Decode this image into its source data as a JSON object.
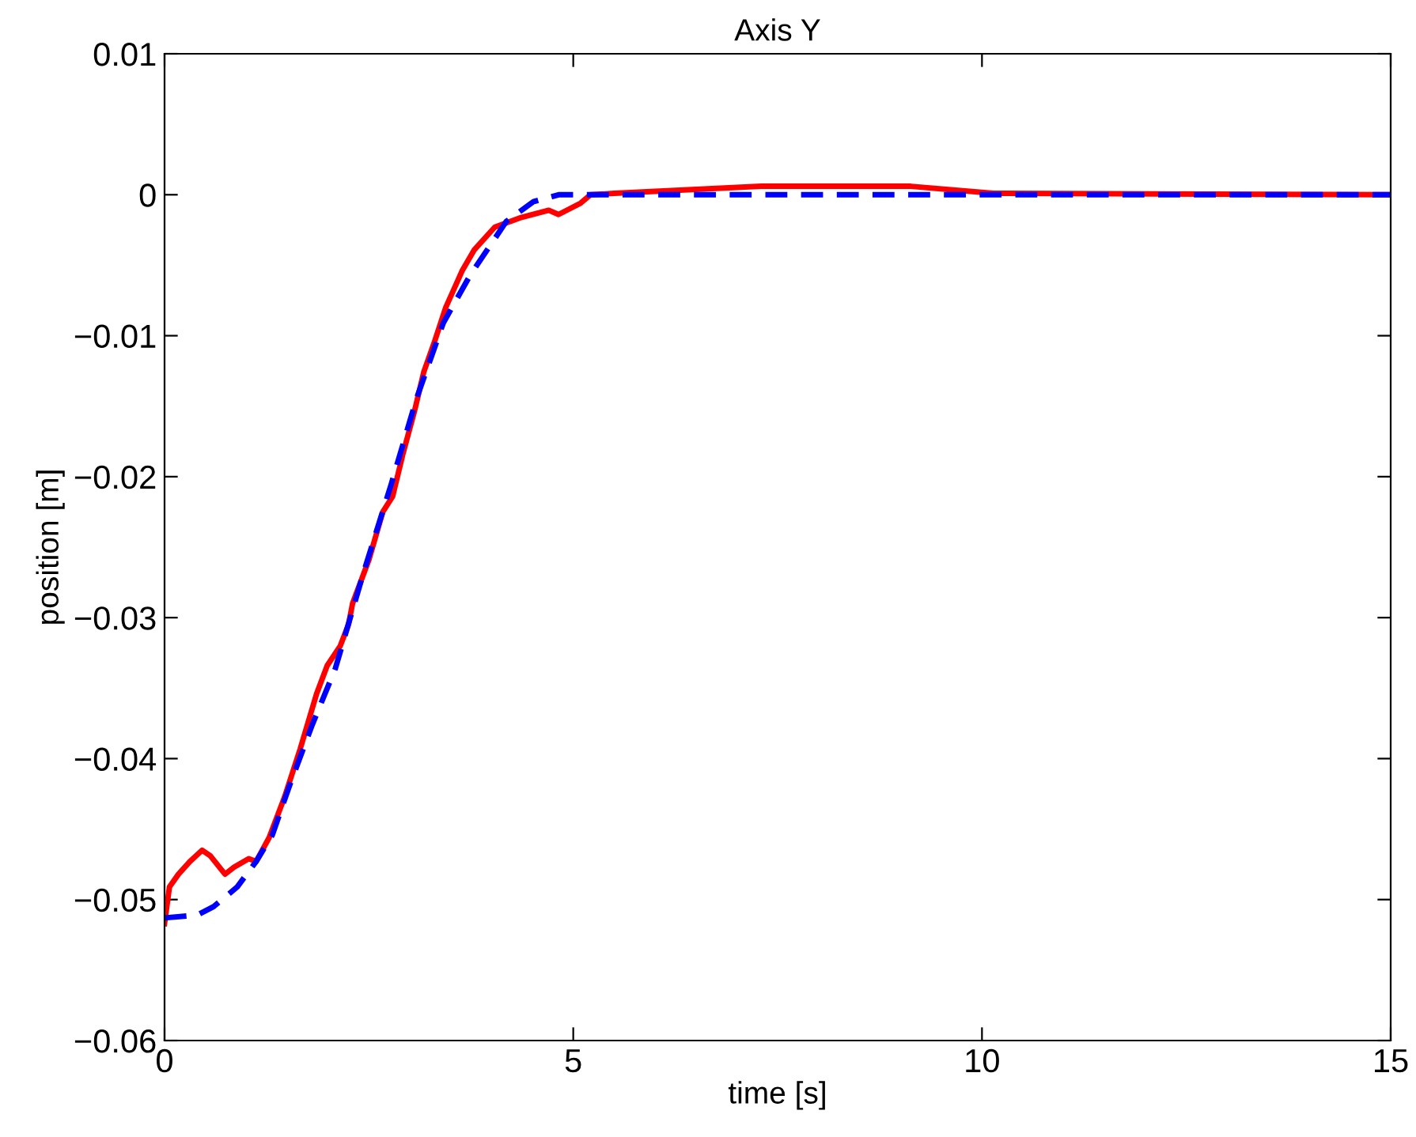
{
  "chart_data": {
    "type": "line",
    "title": "Axis Y",
    "xlabel": "time [s]",
    "ylabel": "position [m]",
    "xlim": [
      0,
      15
    ],
    "ylim": [
      -0.06,
      0.01
    ],
    "xticks": [
      0,
      5,
      10,
      15
    ],
    "yticks": [
      {
        "value": -0.06,
        "label": "−0.06"
      },
      {
        "value": -0.05,
        "label": "−0.05"
      },
      {
        "value": -0.04,
        "label": "−0.04"
      },
      {
        "value": -0.03,
        "label": "−0.03"
      },
      {
        "value": -0.02,
        "label": "−0.02"
      },
      {
        "value": -0.01,
        "label": "−0.01"
      },
      0,
      0.01
    ],
    "series": [
      {
        "color": "#ff0000",
        "line_style": "solid",
        "x": [
          0,
          0.06,
          0.17,
          0.31,
          0.46,
          0.56,
          0.74,
          0.85,
          1.03,
          1.12,
          1.28,
          1.47,
          1.66,
          1.86,
          1.99,
          2.15,
          2.25,
          2.3,
          2.5,
          2.67,
          2.79,
          2.92,
          3.06,
          3.17,
          3.31,
          3.44,
          3.64,
          3.79,
          4.04,
          4.37,
          4.7,
          4.82,
          5.09,
          5.21,
          5.5,
          7.3,
          9.13,
          10.14,
          15
        ],
        "values": [
          -0.0517,
          -0.0491,
          -0.0482,
          -0.0473,
          -0.0465,
          -0.0469,
          -0.0482,
          -0.0477,
          -0.0471,
          -0.0473,
          -0.0456,
          -0.0427,
          -0.0393,
          -0.0354,
          -0.0334,
          -0.032,
          -0.0305,
          -0.029,
          -0.0259,
          -0.0225,
          -0.0214,
          -0.0183,
          -0.0153,
          -0.0126,
          -0.0103,
          -0.008,
          -0.0054,
          -0.0039,
          -0.0023,
          -0.0016,
          -0.0011,
          -0.0014,
          -0.0006,
          0,
          0.0001,
          0.0006,
          0.0006,
          0.0001,
          0
        ]
      },
      {
        "color": "#0000ff",
        "line_style": "dashed",
        "x": [
          0,
          0.4,
          0.6,
          0.89,
          1.12,
          1.32,
          1.53,
          1.8,
          2.09,
          2.44,
          2.77,
          3.08,
          3.41,
          3.74,
          4.18,
          4.51,
          4.82,
          15
        ],
        "values": [
          -0.0513,
          -0.0511,
          -0.0505,
          -0.0491,
          -0.0473,
          -0.0454,
          -0.0419,
          -0.0377,
          -0.0336,
          -0.0267,
          -0.0206,
          -0.0145,
          -0.0091,
          -0.0057,
          -0.0019,
          -0.0005,
          0,
          0
        ]
      }
    ]
  }
}
